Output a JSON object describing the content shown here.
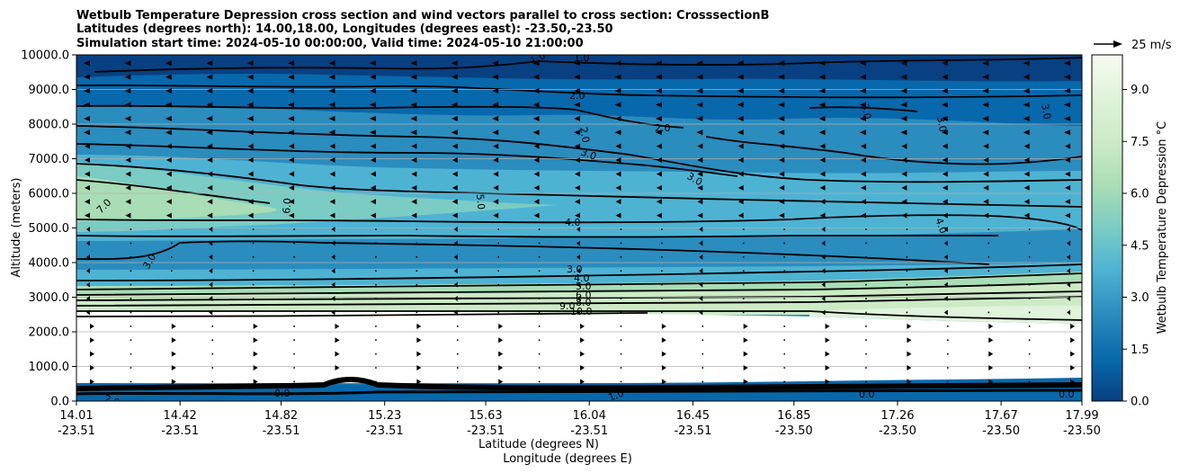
{
  "chart_data": {
    "type": "contour",
    "title_lines": [
      "Wetbulb Temperature Depression cross section and wind vectors parallel to cross section: CrosssectionB",
      "Latitudes (degrees north): 14.00,18.00, Longitudes (degrees east): -23.50,-23.50",
      "Simulation start time: 2024-05-10 00:00:00, Valid time: 2024-05-10 21:00:00"
    ],
    "ylabel": "Altitude (meters)",
    "xlabel_lat": "Latitude (degrees N)",
    "xlabel_lon": "Longitude (degrees E)",
    "ylim": [
      0,
      10000
    ],
    "y_ticks": [
      "0.0",
      "1000.0",
      "2000.0",
      "3000.0",
      "4000.0",
      "5000.0",
      "6000.0",
      "7000.0",
      "8000.0",
      "9000.0",
      "10000.0"
    ],
    "x_ticks": [
      {
        "lat": "14.01",
        "lon": "-23.51"
      },
      {
        "lat": "14.42",
        "lon": "-23.51"
      },
      {
        "lat": "14.82",
        "lon": "-23.51"
      },
      {
        "lat": "15.23",
        "lon": "-23.51"
      },
      {
        "lat": "15.63",
        "lon": "-23.51"
      },
      {
        "lat": "16.04",
        "lon": "-23.51"
      },
      {
        "lat": "16.45",
        "lon": "-23.51"
      },
      {
        "lat": "16.85",
        "lon": "-23.50"
      },
      {
        "lat": "17.26",
        "lon": "-23.50"
      },
      {
        "lat": "17.67",
        "lon": "-23.50"
      },
      {
        "lat": "17.99",
        "lon": "-23.50"
      }
    ],
    "colorbar": {
      "label": "Wetbulb Temperature Depression °C",
      "min": 0.0,
      "max": 10.0,
      "tick_labels": [
        "0.0",
        "1.5",
        "3.0",
        "4.5",
        "6.0",
        "7.5",
        "9.0"
      ]
    },
    "quiver_key_label": "25 m/s",
    "contour_labels": [
      "1.0",
      "1.0",
      "2.0",
      "2.0",
      "2.0",
      "3.0",
      "3.0",
      "3.0",
      "3.0",
      "3.0",
      "3.0",
      "4.0",
      "4.0",
      "5.0",
      "6.0",
      "7.0",
      "3.0",
      "4.0",
      "5.0",
      "6.0",
      "8.0",
      "9.0",
      "10.0",
      "0.0",
      "0.0",
      "0.0",
      "1.0",
      "2.0"
    ]
  }
}
